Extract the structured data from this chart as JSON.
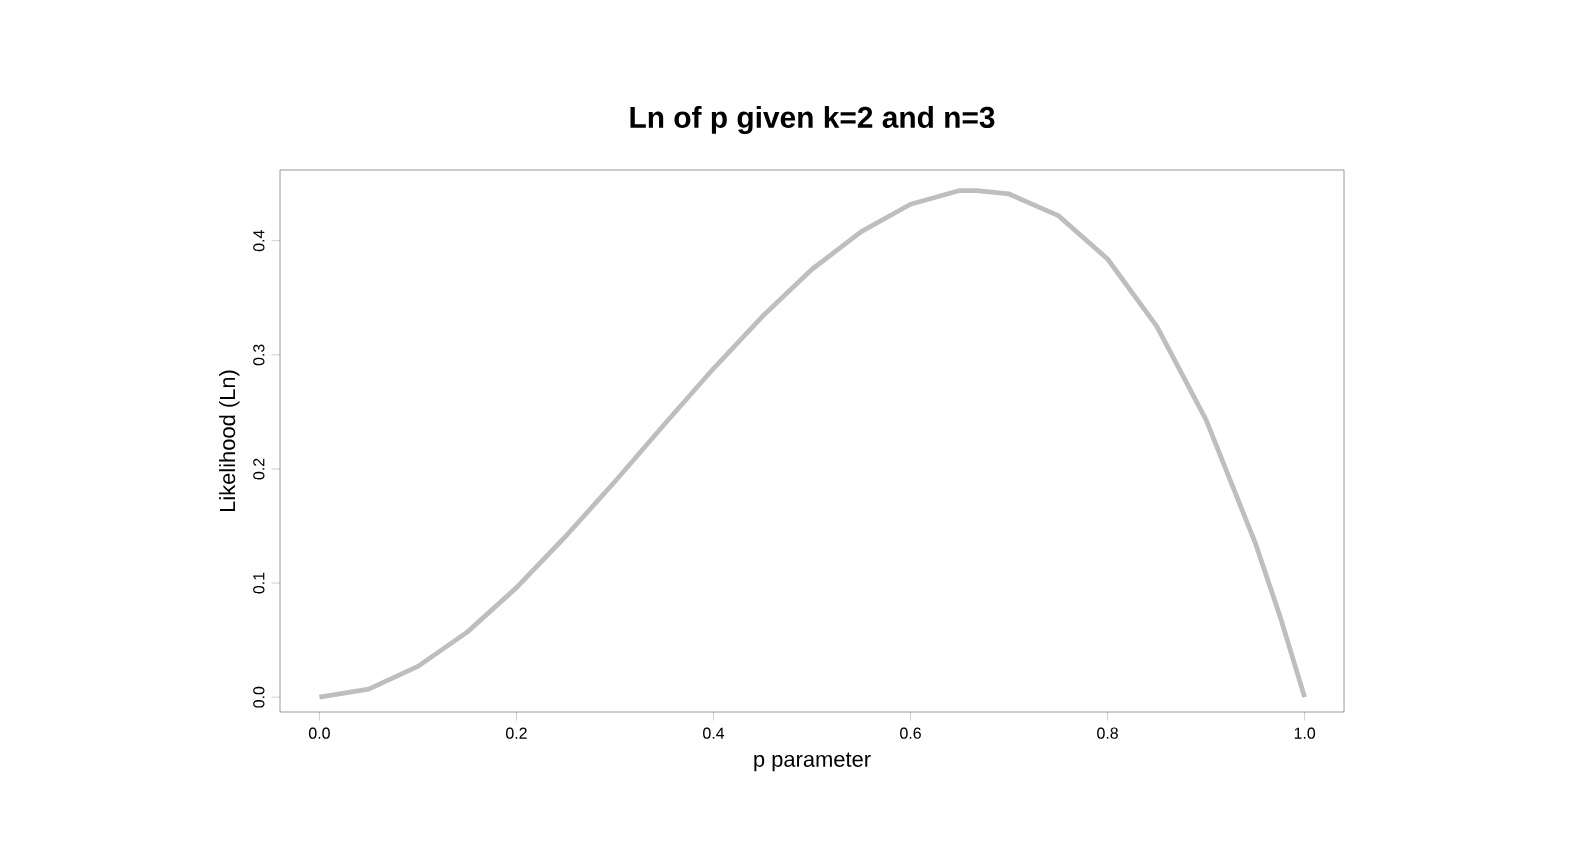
{
  "chart_data": {
    "type": "line",
    "title": "Ln of p given k=2 and n=3",
    "xlabel": "p parameter",
    "ylabel": "Likelihood (Ln)",
    "x": [
      0,
      0.05,
      0.1,
      0.15,
      0.2,
      0.25,
      0.3,
      0.35,
      0.4,
      0.45,
      0.5,
      0.55,
      0.6,
      0.65,
      0.667,
      0.7,
      0.75,
      0.8,
      0.85,
      0.9,
      0.95,
      0.975,
      1
    ],
    "series": [
      {
        "color": "#bebebe",
        "values": [
          0,
          0.007,
          0.027,
          0.057,
          0.096,
          0.141,
          0.189,
          0.239,
          0.288,
          0.334,
          0.375,
          0.408,
          0.432,
          0.444,
          0.444,
          0.441,
          0.422,
          0.384,
          0.325,
          0.243,
          0.135,
          0.071,
          0
        ]
      }
    ],
    "xlim": [
      -0.04,
      1.04
    ],
    "ylim": [
      -0.013,
      0.462
    ],
    "xticks": [
      {
        "value": 0,
        "label": "0.0"
      },
      {
        "value": 0.2,
        "label": "0.2"
      },
      {
        "value": 0.4,
        "label": "0.4"
      },
      {
        "value": 0.6,
        "label": "0.6"
      },
      {
        "value": 0.8,
        "label": "0.8"
      },
      {
        "value": 1,
        "label": "1.0"
      }
    ],
    "yticks": [
      {
        "value": 0,
        "label": "0.0"
      },
      {
        "value": 0.1,
        "label": "0.1"
      },
      {
        "value": 0.2,
        "label": "0.2"
      },
      {
        "value": 0.3,
        "label": "0.3"
      },
      {
        "value": 0.4,
        "label": "0.4"
      }
    ],
    "grid": false,
    "marker": "none",
    "line_style": "solid"
  }
}
